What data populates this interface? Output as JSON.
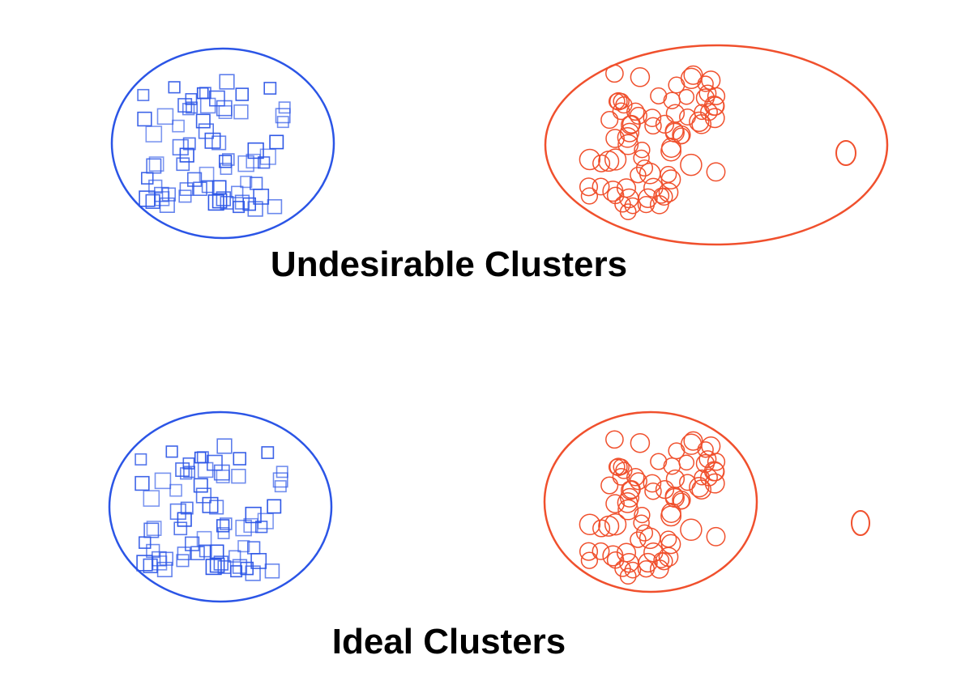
{
  "colors": {
    "blue": "#2b55e6",
    "red": "#f0502d",
    "text": "#000000",
    "background": "#ffffff"
  },
  "marker_shapes": {
    "blue_cluster": "square",
    "red_cluster": "circle"
  },
  "panels": [
    {
      "caption": "Undesirable Clusters",
      "outlier_inside_red_ellipse": true
    },
    {
      "caption": "Ideal Clusters",
      "outlier_inside_red_ellipse": false
    }
  ]
}
